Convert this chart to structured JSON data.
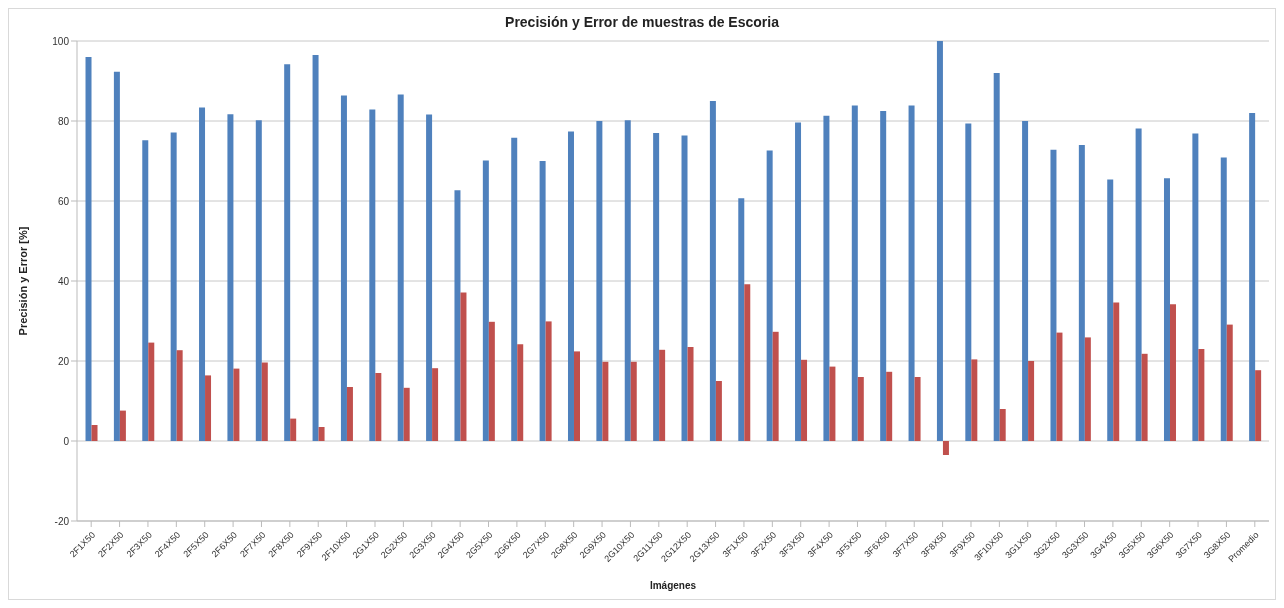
{
  "chart_data": {
    "type": "bar",
    "title": "Precisión y Error de muestras de Escoria",
    "xlabel": "Imágenes",
    "ylabel": "Precisión y Error [%]",
    "categories": [
      "2F1X50",
      "2F2X50",
      "2F3X50",
      "2F4X50",
      "2F5X50",
      "2F6X50",
      "2F7X50",
      "2F8X50",
      "2F9X50",
      "2F10X50",
      "2G1X50",
      "2G2X50",
      "2G3X50",
      "2G4X50",
      "2G5X50",
      "2G6X50",
      "2G7X50",
      "2G8X50",
      "2G9X50",
      "2G10X50",
      "2G11X50",
      "2G12X50",
      "2G13X50",
      "3F1X50",
      "3F2X50",
      "3F3X50",
      "3F4X50",
      "3F5X50",
      "3F6X50",
      "3F7X50",
      "3F8X50",
      "3F9X50",
      "3F10X50",
      "3G1X50",
      "3G2X50",
      "3G3X50",
      "3G4X50",
      "3G5X50",
      "3G6X50",
      "3G7X50",
      "3G8X50",
      "Promedio"
    ],
    "series": [
      {
        "color": "#4f81bd",
        "values": [
          96,
          92.3,
          75.2,
          77.1,
          83.4,
          81.7,
          80.2,
          94.2,
          96.5,
          86.4,
          82.9,
          86.6,
          81.6,
          62.7,
          70.1,
          75.8,
          70,
          77.4,
          80,
          80.2,
          77,
          76.4,
          85,
          60.7,
          72.6,
          79.6,
          81.3,
          83.9,
          82.5,
          83.9,
          100,
          79.4,
          92,
          80,
          72.8,
          74,
          65.4,
          78.1,
          65.7,
          76.9,
          70.9,
          82
        ]
      },
      {
        "color": "#c0504d",
        "values": [
          4,
          7.6,
          24.6,
          22.7,
          16.4,
          18.1,
          19.6,
          5.6,
          3.5,
          13.5,
          17,
          13.3,
          18.2,
          37.1,
          29.8,
          24.2,
          29.9,
          22.4,
          19.8,
          19.8,
          22.8,
          23.5,
          15,
          39.2,
          27.3,
          20.3,
          18.6,
          16,
          17.3,
          16,
          -3.5,
          20.4,
          8,
          20,
          27.1,
          25.9,
          34.6,
          21.8,
          34.2,
          23,
          29.1,
          17.7
        ]
      }
    ],
    "ylim": [
      -20,
      100
    ],
    "yticks": [
      -20,
      0,
      20,
      40,
      60,
      80,
      100
    ],
    "grid": "y",
    "legend": false
  }
}
